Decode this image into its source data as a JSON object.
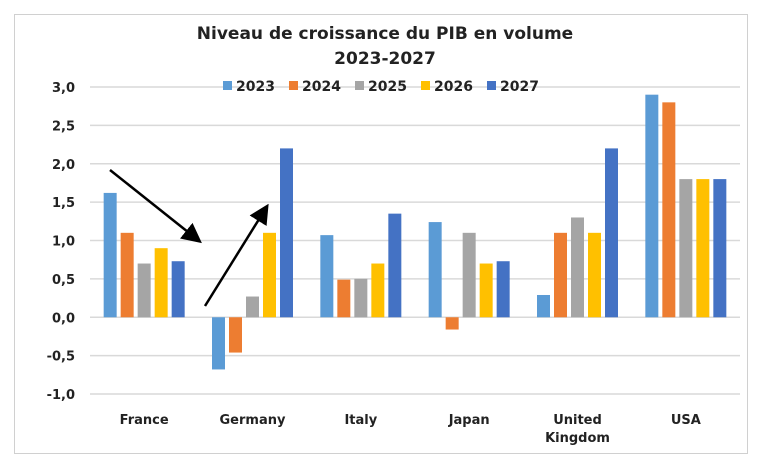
{
  "chart_data": {
    "type": "bar",
    "title": "Niveau de croissance du PIB en volume",
    "subtitle": "2023-2027",
    "categories": [
      "France",
      "Germany",
      "Italy",
      "Japan",
      "United Kingdom",
      "USA"
    ],
    "category_lines": [
      [
        "France"
      ],
      [
        "Germany"
      ],
      [
        "Italy"
      ],
      [
        "Japan"
      ],
      [
        "United",
        "Kingdom"
      ],
      [
        "USA"
      ]
    ],
    "series": [
      {
        "name": "2023",
        "color": "#5b9bd5",
        "values": [
          1.62,
          -0.68,
          1.07,
          1.24,
          0.29,
          2.9
        ]
      },
      {
        "name": "2024",
        "color": "#ed7d31",
        "values": [
          1.1,
          -0.46,
          0.49,
          -0.16,
          1.1,
          2.8
        ]
      },
      {
        "name": "2025",
        "color": "#a5a5a5",
        "values": [
          0.7,
          0.27,
          0.5,
          1.1,
          1.3,
          1.8
        ]
      },
      {
        "name": "2026",
        "color": "#ffc000",
        "values": [
          0.9,
          1.1,
          0.7,
          0.7,
          1.1,
          1.8
        ]
      },
      {
        "name": "2027",
        "color": "#4472c4",
        "values": [
          0.73,
          2.2,
          1.35,
          0.73,
          2.2,
          1.8
        ]
      }
    ],
    "ylim": [
      -1.0,
      3.0
    ],
    "yticks": [
      "-1,0",
      "-0,5",
      "0,0",
      "0,5",
      "1,0",
      "1,5",
      "2,0",
      "2,5",
      "3,0"
    ],
    "grid": true,
    "legend": "top",
    "annotations": [
      "arrow-down France to Germany",
      "arrow-up Germany rising"
    ]
  }
}
